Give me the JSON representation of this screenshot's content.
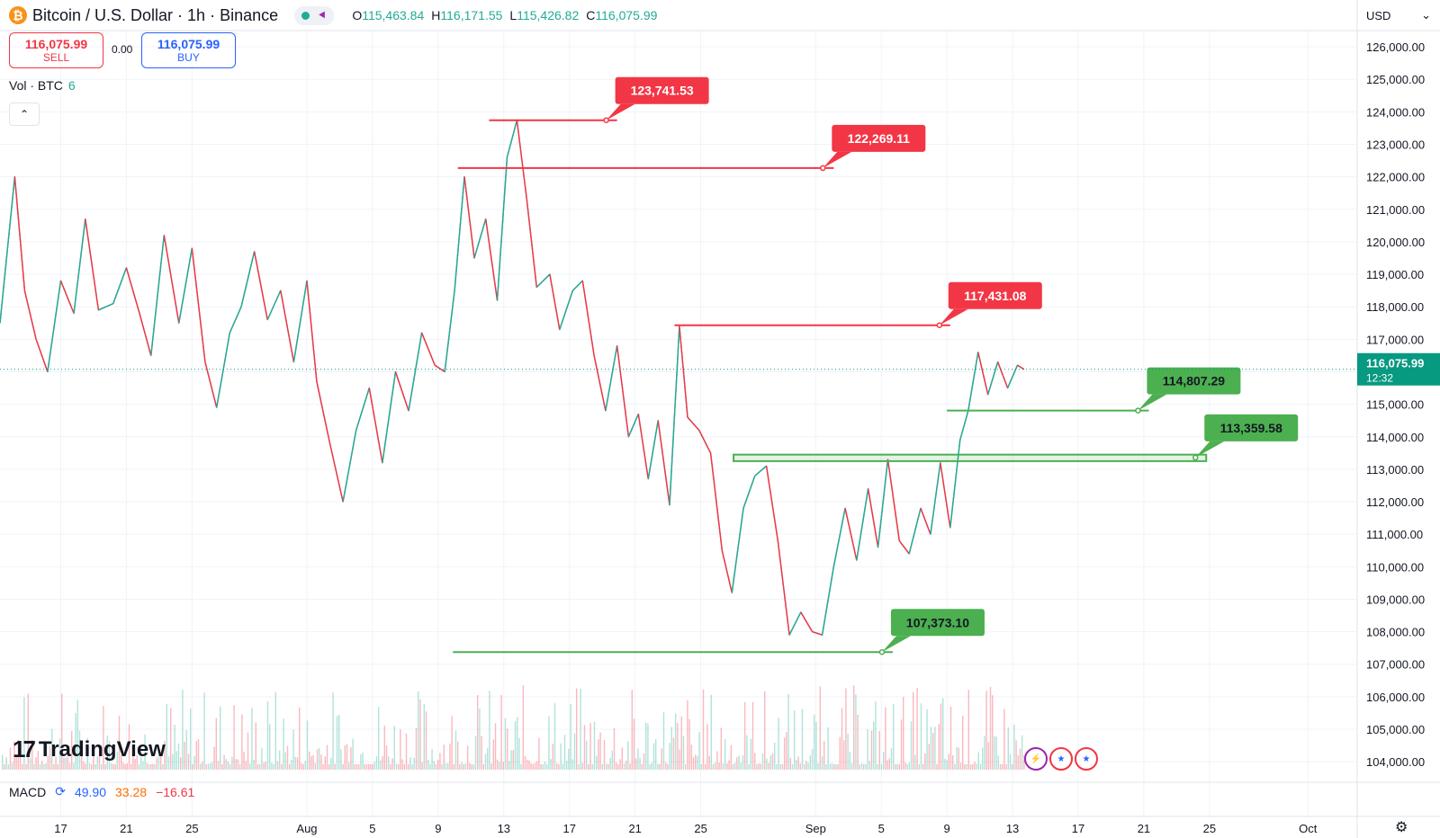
{
  "header": {
    "symbol_icon": "bitcoin-icon",
    "title": "Bitcoin / U.S. Dollar · 1h · Binance",
    "ohlc": [
      {
        "k": "O",
        "v": "115,463.84"
      },
      {
        "k": "H",
        "v": "116,171.55"
      },
      {
        "k": "L",
        "v": "115,426.82"
      },
      {
        "k": "C",
        "v": "116,075.99"
      }
    ]
  },
  "trade": {
    "sell_price": "116,075.99",
    "sell_label": "SELL",
    "spread": "0.00",
    "buy_price": "116,075.99",
    "buy_label": "BUY"
  },
  "volume_label": {
    "name": "Vol · BTC",
    "value": "6"
  },
  "currency": "USD",
  "brand": "TradingView",
  "macd": {
    "label": "MACD",
    "v1": "49.90",
    "v2": "33.28",
    "v3": "−16.61"
  },
  "colors": {
    "up": "#22ab94",
    "down": "#f23645",
    "support": "#4caf50",
    "resistance": "#f23645",
    "current_price": "#089981"
  },
  "chart_data": {
    "type": "line",
    "title": "Bitcoin / U.S. Dollar · 1h · Binance",
    "xlabel": "",
    "ylabel": "",
    "ylim": [
      103700,
      126500
    ],
    "grid": true,
    "y_ticks": [
      "126,000.00",
      "125,000.00",
      "124,000.00",
      "123,000.00",
      "122,000.00",
      "121,000.00",
      "120,000.00",
      "119,000.00",
      "118,000.00",
      "117,000.00",
      "116,000.00",
      "115,000.00",
      "114,000.00",
      "113,000.00",
      "112,000.00",
      "111,000.00",
      "110,000.00",
      "109,000.00",
      "108,000.00",
      "107,000.00",
      "106,000.00",
      "105,000.00",
      "104,000.00"
    ],
    "x_ticks": [
      {
        "label": "17",
        "day": 17
      },
      {
        "label": "21",
        "day": 21
      },
      {
        "label": "25",
        "day": 25
      },
      {
        "label": "Aug",
        "day": 32
      },
      {
        "label": "5",
        "day": 36
      },
      {
        "label": "9",
        "day": 40
      },
      {
        "label": "13",
        "day": 44
      },
      {
        "label": "17",
        "day": 48
      },
      {
        "label": "21",
        "day": 52
      },
      {
        "label": "25",
        "day": 56
      },
      {
        "label": "Sep",
        "day": 63
      },
      {
        "label": "5",
        "day": 67
      },
      {
        "label": "9",
        "day": 71
      },
      {
        "label": "13",
        "day": 75
      },
      {
        "label": "17",
        "day": 79
      },
      {
        "label": "21",
        "day": 83
      },
      {
        "label": "25",
        "day": 87
      },
      {
        "label": "Oct",
        "day": 93
      }
    ],
    "x_domain": [
      13.3,
      96
    ],
    "series": [
      {
        "points": [
          [
            13.3,
            117500
          ],
          [
            14.2,
            122000
          ],
          [
            14.8,
            118500
          ],
          [
            15.5,
            117000
          ],
          [
            16.2,
            116000
          ],
          [
            17.0,
            118800
          ],
          [
            17.8,
            117800
          ],
          [
            18.5,
            120700
          ],
          [
            19.3,
            117900
          ],
          [
            20.2,
            118100
          ],
          [
            21.0,
            119200
          ],
          [
            21.8,
            117800
          ],
          [
            22.5,
            116500
          ],
          [
            23.3,
            120200
          ],
          [
            24.2,
            117500
          ],
          [
            25.0,
            119800
          ],
          [
            25.8,
            116300
          ],
          [
            26.5,
            114900
          ],
          [
            27.3,
            117200
          ],
          [
            28.0,
            118000
          ],
          [
            28.8,
            119700
          ],
          [
            29.6,
            117600
          ],
          [
            30.4,
            118500
          ],
          [
            31.2,
            116300
          ],
          [
            32.0,
            118800
          ],
          [
            32.6,
            115700
          ],
          [
            33.4,
            113800
          ],
          [
            34.2,
            112000
          ],
          [
            35.0,
            114200
          ],
          [
            35.8,
            115500
          ],
          [
            36.6,
            113200
          ],
          [
            37.4,
            116000
          ],
          [
            38.2,
            114800
          ],
          [
            39.0,
            117200
          ],
          [
            39.8,
            116200
          ],
          [
            40.4,
            116000
          ],
          [
            41.0,
            118500
          ],
          [
            41.6,
            122000
          ],
          [
            42.2,
            119500
          ],
          [
            42.9,
            120700
          ],
          [
            43.6,
            118200
          ],
          [
            44.2,
            122600
          ],
          [
            44.8,
            123740
          ],
          [
            45.4,
            121300
          ],
          [
            46.0,
            118600
          ],
          [
            46.8,
            119000
          ],
          [
            47.4,
            117300
          ],
          [
            48.2,
            118500
          ],
          [
            48.8,
            118800
          ],
          [
            49.5,
            116500
          ],
          [
            50.2,
            114800
          ],
          [
            50.9,
            116800
          ],
          [
            51.6,
            114000
          ],
          [
            52.2,
            114700
          ],
          [
            52.8,
            112700
          ],
          [
            53.4,
            114500
          ],
          [
            54.1,
            111900
          ],
          [
            54.7,
            117400
          ],
          [
            55.2,
            114600
          ],
          [
            55.9,
            114200
          ],
          [
            56.6,
            113500
          ],
          [
            57.3,
            110500
          ],
          [
            57.9,
            109200
          ],
          [
            58.6,
            111800
          ],
          [
            59.3,
            112800
          ],
          [
            60.0,
            113100
          ],
          [
            60.7,
            110800
          ],
          [
            61.4,
            107900
          ],
          [
            62.1,
            108600
          ],
          [
            62.8,
            108000
          ],
          [
            63.4,
            107900
          ],
          [
            64.1,
            110000
          ],
          [
            64.8,
            111800
          ],
          [
            65.5,
            110200
          ],
          [
            66.2,
            112400
          ],
          [
            66.8,
            110600
          ],
          [
            67.4,
            113300
          ],
          [
            68.1,
            110800
          ],
          [
            68.7,
            110400
          ],
          [
            69.4,
            111800
          ],
          [
            70.0,
            111000
          ],
          [
            70.6,
            113200
          ],
          [
            71.2,
            111200
          ],
          [
            71.8,
            113900
          ],
          [
            72.3,
            114800
          ],
          [
            72.9,
            116600
          ],
          [
            73.5,
            115300
          ],
          [
            74.1,
            116300
          ],
          [
            74.7,
            115500
          ],
          [
            75.3,
            116200
          ],
          [
            75.7,
            116076
          ]
        ]
      }
    ],
    "levels": [
      {
        "price": 123741.53,
        "label": "123,741.53",
        "kind": "resistance",
        "from_day": 43.1,
        "to_day": 50.9
      },
      {
        "price": 122269.11,
        "label": "122,269.11",
        "kind": "resistance",
        "from_day": 41.2,
        "to_day": 64.1
      },
      {
        "price": 117431.08,
        "label": "117,431.08",
        "kind": "resistance",
        "from_day": 54.4,
        "to_day": 71.2
      },
      {
        "price": 114807.29,
        "label": "114,807.29",
        "kind": "support",
        "from_day": 71.0,
        "to_day": 83.3
      },
      {
        "price": 113359.58,
        "label": "113,359.58",
        "kind": "support_zone",
        "zone": [
          113250,
          113450
        ],
        "from_day": 58.0,
        "to_day": 86.8
      },
      {
        "price": 107373.1,
        "label": "107,373.10",
        "kind": "support",
        "from_day": 40.9,
        "to_day": 67.7
      }
    ],
    "current_price": {
      "label": "116,075.99",
      "countdown": "12:32",
      "value": 116075.99
    }
  }
}
